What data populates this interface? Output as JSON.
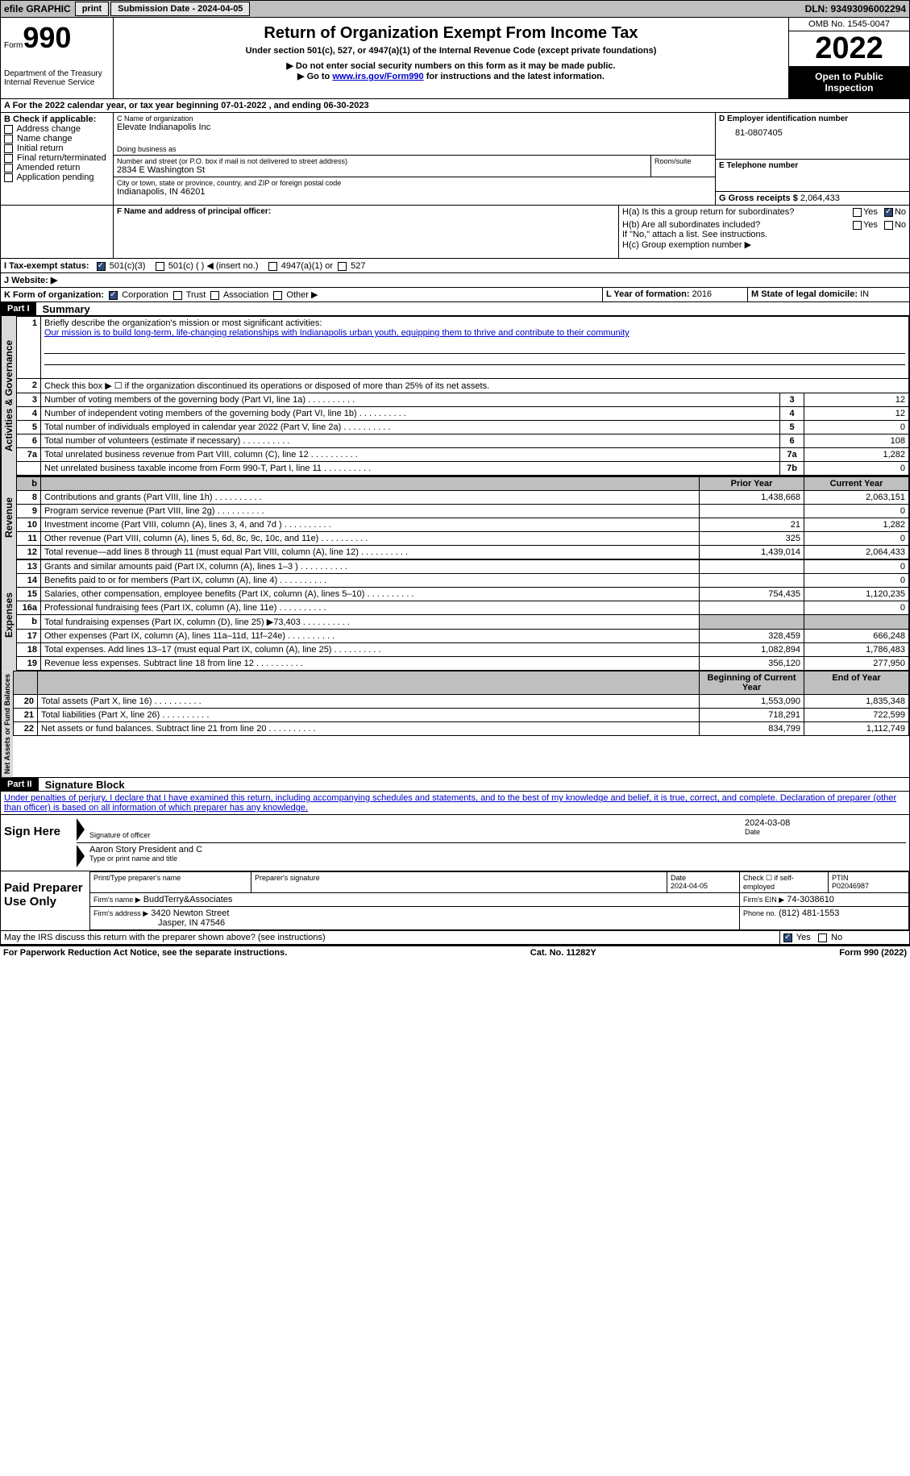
{
  "topbar": {
    "efile": "efile GRAPHIC",
    "print": "print",
    "submission": "Submission Date - 2024-04-05",
    "dln": "DLN: 93493096002294"
  },
  "header": {
    "form_word": "Form",
    "form_num": "990",
    "dept": "Department of the Treasury",
    "irs": "Internal Revenue Service",
    "title": "Return of Organization Exempt From Income Tax",
    "subtitle": "Under section 501(c), 527, or 4947(a)(1) of the Internal Revenue Code (except private foundations)",
    "inst1": "▶ Do not enter social security numbers on this form as it may be made public.",
    "inst2_pre": "▶ Go to ",
    "inst2_link": "www.irs.gov/Form990",
    "inst2_post": " for instructions and the latest information.",
    "omb": "OMB No. 1545-0047",
    "year": "2022",
    "open": "Open to Public Inspection"
  },
  "a_line": "A For the 2022 calendar year, or tax year beginning 07-01-2022    , and ending 06-30-2023",
  "b": {
    "title": "B Check if applicable:",
    "items": [
      "Address change",
      "Name change",
      "Initial return",
      "Final return/terminated",
      "Amended return",
      "Application pending"
    ]
  },
  "c": {
    "label": "C Name of organization",
    "name": "Elevate Indianapolis Inc",
    "dba": "Doing business as",
    "street_lbl": "Number and street (or P.O. box if mail is not delivered to street address)",
    "room_lbl": "Room/suite",
    "street": "2834 E Washington St",
    "city_lbl": "City or town, state or province, country, and ZIP or foreign postal code",
    "city": "Indianapolis, IN  46201"
  },
  "d": {
    "label": "D Employer identification number",
    "value": "81-0807405"
  },
  "e": {
    "label": "E Telephone number"
  },
  "g": {
    "label": "G Gross receipts $",
    "value": "2,064,433"
  },
  "f": {
    "label": "F Name and address of principal officer:"
  },
  "h": {
    "a": "H(a)  Is this a group return for subordinates?",
    "b": "H(b)  Are all subordinates included?",
    "note": "If \"No,\" attach a list. See instructions.",
    "c": "H(c)  Group exemption number ▶",
    "yes": "Yes",
    "no": "No"
  },
  "i": {
    "label": "I   Tax-exempt status:",
    "c3": "501(c)(3)",
    "c": "501(c) (  ) ◀ (insert no.)",
    "a1": "4947(a)(1) or",
    "s527": "527"
  },
  "j": {
    "label": "J   Website: ▶"
  },
  "k": {
    "label": "K Form of organization:",
    "corp": "Corporation",
    "trust": "Trust",
    "assoc": "Association",
    "other": "Other ▶"
  },
  "l": {
    "label": "L Year of formation:",
    "value": "2016"
  },
  "m": {
    "label": "M State of legal domicile:",
    "value": "IN"
  },
  "part1": {
    "hdr": "Part I",
    "title": "Summary"
  },
  "summary": {
    "q1": "Briefly describe the organization's mission or most significant activities:",
    "mission": "Our mission is to build long-term, life-changing relationships with Indianapolis urban youth, equipping them to thrive and contribute to their community",
    "q2": "Check this box ▶ ☐ if the organization discontinued its operations or disposed of more than 25% of its net assets.",
    "rows_ag": [
      {
        "n": "3",
        "label": "Number of voting members of the governing body (Part VI, line 1a)",
        "box": "3",
        "val": "12"
      },
      {
        "n": "4",
        "label": "Number of independent voting members of the governing body (Part VI, line 1b)",
        "box": "4",
        "val": "12"
      },
      {
        "n": "5",
        "label": "Total number of individuals employed in calendar year 2022 (Part V, line 2a)",
        "box": "5",
        "val": "0"
      },
      {
        "n": "6",
        "label": "Total number of volunteers (estimate if necessary)",
        "box": "6",
        "val": "108"
      },
      {
        "n": "7a",
        "label": "Total unrelated business revenue from Part VIII, column (C), line 12",
        "box": "7a",
        "val": "1,282"
      },
      {
        "n": "",
        "label": "Net unrelated business taxable income from Form 990-T, Part I, line 11",
        "box": "7b",
        "val": "0"
      }
    ],
    "prior_hdr": "Prior Year",
    "curr_hdr": "Current Year",
    "rows_rev": [
      {
        "n": "8",
        "label": "Contributions and grants (Part VIII, line 1h)",
        "py": "1,438,668",
        "cy": "2,063,151"
      },
      {
        "n": "9",
        "label": "Program service revenue (Part VIII, line 2g)",
        "py": "",
        "cy": "0"
      },
      {
        "n": "10",
        "label": "Investment income (Part VIII, column (A), lines 3, 4, and 7d )",
        "py": "21",
        "cy": "1,282"
      },
      {
        "n": "11",
        "label": "Other revenue (Part VIII, column (A), lines 5, 6d, 8c, 9c, 10c, and 11e)",
        "py": "325",
        "cy": "0"
      },
      {
        "n": "12",
        "label": "Total revenue—add lines 8 through 11 (must equal Part VIII, column (A), line 12)",
        "py": "1,439,014",
        "cy": "2,064,433"
      }
    ],
    "rows_exp": [
      {
        "n": "13",
        "label": "Grants and similar amounts paid (Part IX, column (A), lines 1–3 )",
        "py": "",
        "cy": "0"
      },
      {
        "n": "14",
        "label": "Benefits paid to or for members (Part IX, column (A), line 4)",
        "py": "",
        "cy": "0"
      },
      {
        "n": "15",
        "label": "Salaries, other compensation, employee benefits (Part IX, column (A), lines 5–10)",
        "py": "754,435",
        "cy": "1,120,235"
      },
      {
        "n": "16a",
        "label": "Professional fundraising fees (Part IX, column (A), line 11e)",
        "py": "",
        "cy": "0"
      },
      {
        "n": "b",
        "label": "Total fundraising expenses (Part IX, column (D), line 25) ▶73,403",
        "py": "SHADE",
        "cy": "SHADE"
      },
      {
        "n": "17",
        "label": "Other expenses (Part IX, column (A), lines 11a–11d, 11f–24e)",
        "py": "328,459",
        "cy": "666,248"
      },
      {
        "n": "18",
        "label": "Total expenses. Add lines 13–17 (must equal Part IX, column (A), line 25)",
        "py": "1,082,894",
        "cy": "1,786,483"
      },
      {
        "n": "19",
        "label": "Revenue less expenses. Subtract line 18 from line 12",
        "py": "356,120",
        "cy": "277,950"
      }
    ],
    "beg_hdr": "Beginning of Current Year",
    "end_hdr": "End of Year",
    "rows_na": [
      {
        "n": "20",
        "label": "Total assets (Part X, line 16)",
        "py": "1,553,090",
        "cy": "1,835,348"
      },
      {
        "n": "21",
        "label": "Total liabilities (Part X, line 26)",
        "py": "718,291",
        "cy": "722,599"
      },
      {
        "n": "22",
        "label": "Net assets or fund balances. Subtract line 21 from line 20",
        "py": "834,799",
        "cy": "1,112,749"
      }
    ],
    "vert_ag": "Activities & Governance",
    "vert_rev": "Revenue",
    "vert_exp": "Expenses",
    "vert_na": "Net Assets or Fund Balances"
  },
  "part2": {
    "hdr": "Part II",
    "title": "Signature Block"
  },
  "sig": {
    "decl": "Under penalties of perjury, I declare that I have examined this return, including accompanying schedules and statements, and to the best of my knowledge and belief, it is true, correct, and complete. Declaration of preparer (other than officer) is based on all information of which preparer has any knowledge.",
    "sign_here": "Sign Here",
    "sig_officer": "Signature of officer",
    "date": "Date",
    "date_val": "2024-03-08",
    "name_line": "Aaron Story  President and C",
    "name_lbl": "Type or print name and title",
    "paid": "Paid Preparer Use Only",
    "prep_name_lbl": "Print/Type preparer's name",
    "prep_sig_lbl": "Preparer's signature",
    "prep_date_lbl": "Date",
    "prep_date": "2024-04-05",
    "check_if": "Check ☐ if self-employed",
    "ptin_lbl": "PTIN",
    "ptin": "P02046987",
    "firm_name_lbl": "Firm's name      ▶",
    "firm_name": "BuddTerry&Associates",
    "firm_ein_lbl": "Firm's EIN ▶",
    "firm_ein": "74-3038610",
    "firm_addr_lbl": "Firm's address ▶",
    "firm_addr1": "3420 Newton Street",
    "firm_addr2": "Jasper, IN  47546",
    "phone_lbl": "Phone no.",
    "phone": "(812) 481-1553",
    "may_irs": "May the IRS discuss this return with the preparer shown above? (see instructions)",
    "yes": "Yes",
    "no": "No"
  },
  "footer": {
    "left": "For Paperwork Reduction Act Notice, see the separate instructions.",
    "mid": "Cat. No. 11282Y",
    "right": "Form 990 (2022)"
  },
  "colors": {
    "link": "#0000cc",
    "grey": "#bfbfbf",
    "dark": "#000000",
    "check": "#2e4b7a"
  }
}
